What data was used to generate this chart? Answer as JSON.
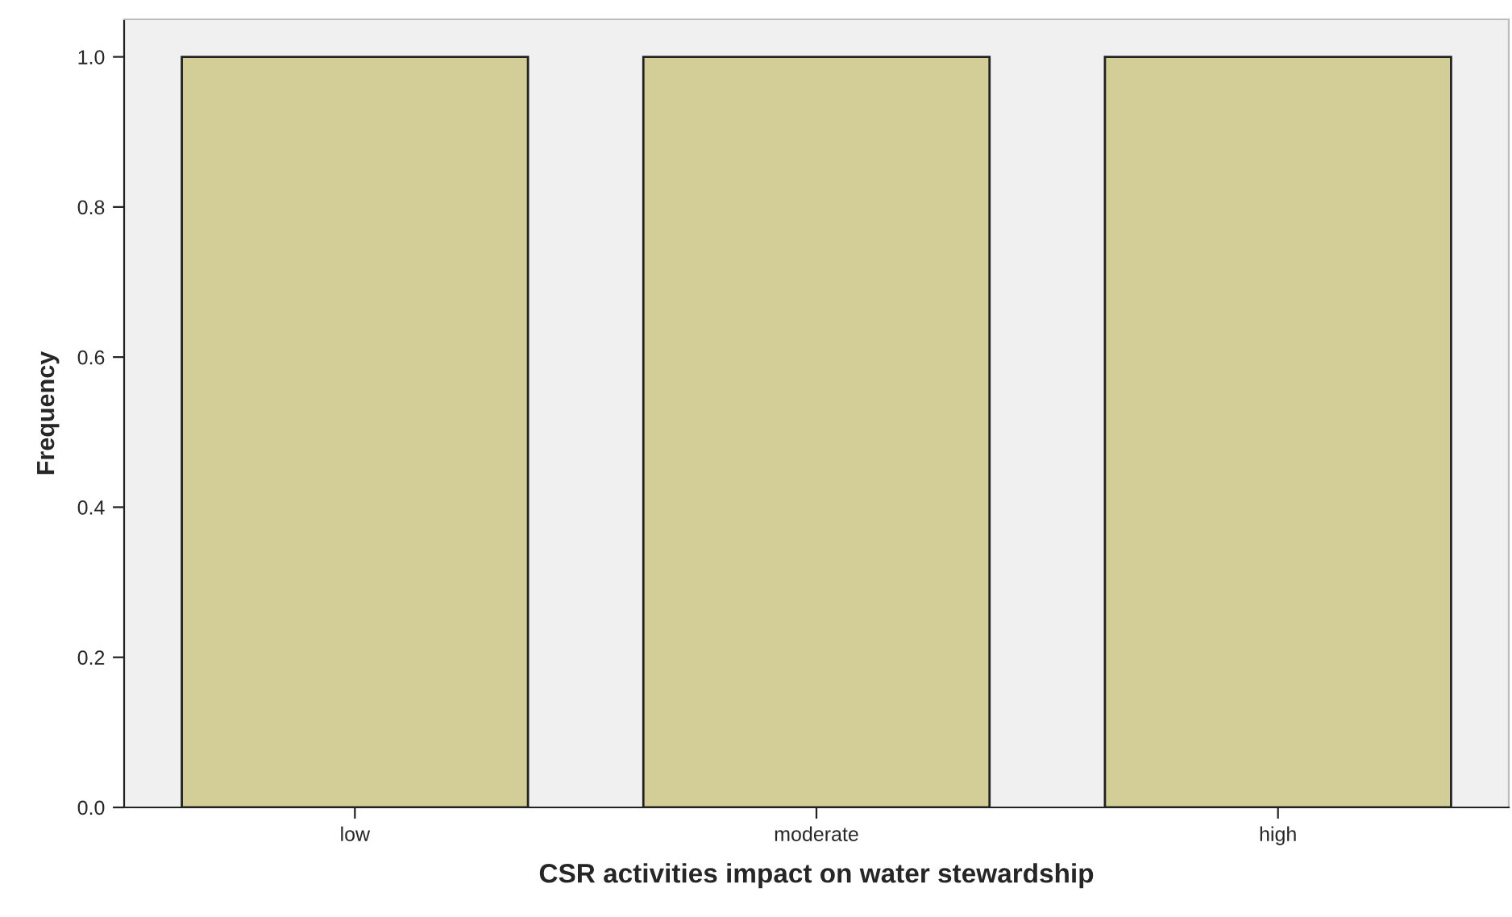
{
  "chart_data": {
    "type": "bar",
    "xlabel": "CSR activities impact on water stewardship",
    "ylabel": "Frequency",
    "categories": [
      "low",
      "moderate",
      "high"
    ],
    "values": [
      1.0,
      1.0,
      1.0
    ],
    "color": "#d3ce97",
    "ylim": [
      0,
      1.05
    ],
    "yticks": [
      {
        "value": 0,
        "label": "0.0"
      },
      {
        "value": 0.2,
        "label": "0.2"
      },
      {
        "value": 0.4,
        "label": "0.4"
      },
      {
        "value": 0.6,
        "label": "0.6"
      },
      {
        "value": 0.8,
        "label": "0.8"
      },
      {
        "value": 1.0,
        "label": "1.0"
      }
    ],
    "grid": false,
    "legend": false
  }
}
